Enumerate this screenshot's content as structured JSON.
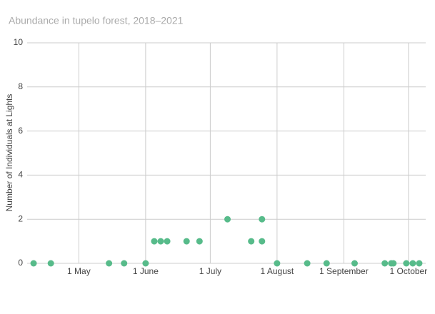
{
  "chart_data": {
    "type": "scatter",
    "title": "Abundance in tupelo forest, 2018–2021",
    "y_label": "Number of Individuals at Lights",
    "series": [
      {
        "color": "#57bb8a",
        "x": [
          100,
          108,
          135,
          142,
          152,
          156,
          159,
          162,
          171,
          177,
          190,
          201,
          206,
          206,
          213,
          227,
          236,
          249,
          263,
          266,
          267,
          273,
          276,
          279
        ],
        "values": [
          0,
          0,
          0,
          0,
          0,
          1,
          1,
          1,
          1,
          1,
          2,
          1,
          2,
          1,
          0,
          0,
          0,
          0,
          0,
          0,
          0,
          0,
          0,
          0
        ]
      }
    ],
    "xlim": [
      97,
      282
    ],
    "xticks": [
      {
        "value": 121,
        "label": "1 May"
      },
      {
        "value": 152,
        "label": "1 June"
      },
      {
        "value": 182,
        "label": "1 July"
      },
      {
        "value": 213,
        "label": "1 August"
      },
      {
        "value": 244,
        "label": "1 September"
      },
      {
        "value": 274,
        "label": "1 October"
      }
    ],
    "ylim": [
      0,
      10
    ],
    "yticks": [
      0,
      2,
      4,
      6,
      8,
      10
    ],
    "grid": true
  }
}
